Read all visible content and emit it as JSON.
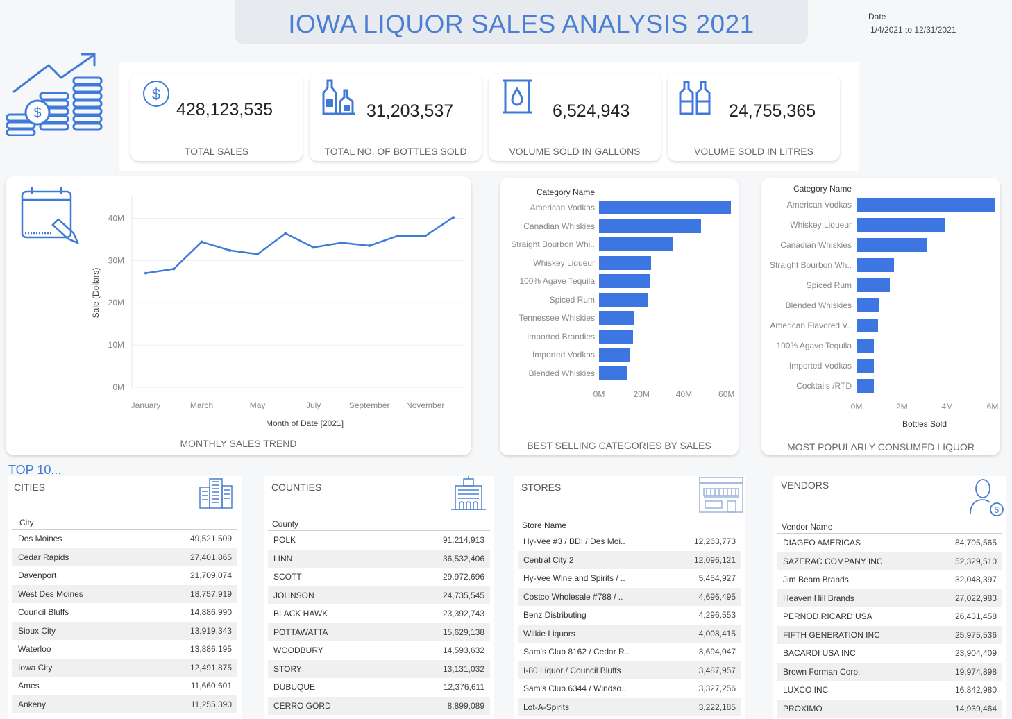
{
  "header": {
    "title": "IOWA LIQUOR SALES ANALYSIS 2021",
    "date_label": "Date",
    "date_range": "1/4/2021 to 12/31/2021"
  },
  "kpis": [
    {
      "value": "428,123,535",
      "label": "TOTAL SALES",
      "icon": "dollar-icon"
    },
    {
      "value": "31,203,537",
      "label": "TOTAL NO. OF BOTTLES SOLD",
      "icon": "bottles-icon"
    },
    {
      "value": "6,524,943",
      "label": "VOLUME SOLD IN GALLONS",
      "icon": "barrel-icon"
    },
    {
      "value": "24,755,365",
      "label": "VOLUME SOLD IN LITRES",
      "icon": "bottles-litre-icon"
    }
  ],
  "sections": {
    "top10": "TOP 10..."
  },
  "chart_data": [
    {
      "type": "line",
      "title": "MONTHLY SALES TREND",
      "xlabel": "Month of Date [2021]",
      "ylabel": "Sale (Dollars)",
      "ylim": [
        0,
        45
      ],
      "yticks": [
        "0M",
        "10M",
        "20M",
        "30M",
        "40M"
      ],
      "xticks": [
        "January",
        "March",
        "May",
        "July",
        "September",
        "November"
      ],
      "x": [
        "January",
        "February",
        "March",
        "April",
        "May",
        "June",
        "July",
        "August",
        "September",
        "October",
        "November",
        "December"
      ],
      "series": [
        {
          "values": [
            27.0,
            28.0,
            34.4,
            32.4,
            31.5,
            36.4,
            33.1,
            34.2,
            33.5,
            35.8,
            35.8,
            40.2
          ]
        }
      ],
      "grid": true
    },
    {
      "type": "bar",
      "orientation": "horizontal",
      "title": "BEST SELLING CATEGORIES BY SALES",
      "category_header": "Category Name",
      "categories": [
        "American Vodkas",
        "Canadian Whiskies",
        "Straight Bourbon Whi..",
        "Whiskey Liqueur",
        "100% Agave Tequila",
        "Spiced Rum",
        "Tennessee Whiskies",
        "Imported Brandies",
        "Imported Vodkas",
        "Blended Whiskies"
      ],
      "values": [
        62,
        48,
        34.5,
        24.5,
        24,
        23.3,
        16.5,
        16,
        14.3,
        13
      ],
      "xlim": [
        0,
        65
      ],
      "xticks": [
        "0M",
        "20M",
        "40M",
        "60M"
      ]
    },
    {
      "type": "bar",
      "orientation": "horizontal",
      "title": "MOST POPULARLY CONSUMED LIQUOR",
      "category_header": "Category Name",
      "xlabel": "Bottles Sold",
      "categories": [
        "American Vodkas",
        "Whiskey Liqueur",
        "Canadian Whiskies",
        "Straight Bourbon Wh..",
        "Spiced Rum",
        "Blended Whiskies",
        "American Flavored V..",
        "100% Agave Tequila",
        "Imported Vodkas",
        "Cocktails /RTD"
      ],
      "values": [
        6.1,
        3.9,
        3.1,
        1.66,
        1.47,
        0.97,
        0.95,
        0.78,
        0.78,
        0.75
      ],
      "xlim": [
        0,
        6
      ],
      "xticks": [
        "0M",
        "2M",
        "4M",
        "6M"
      ]
    }
  ],
  "tables": [
    {
      "title": "CITIES",
      "header": "City",
      "icon": "buildings-icon",
      "rows": [
        [
          "Des Moines",
          "49,521,509"
        ],
        [
          "Cedar Rapids",
          "27,401,865"
        ],
        [
          "Davenport",
          "21,709,074"
        ],
        [
          "West Des Moines",
          "18,757,919"
        ],
        [
          "Council Bluffs",
          "14,886,990"
        ],
        [
          "Sioux City",
          "13,919,343"
        ],
        [
          "Waterloo",
          "13,886,195"
        ],
        [
          "Iowa City",
          "12,491,875"
        ],
        [
          "Ames",
          "11,660,601"
        ],
        [
          "Ankeny",
          "11,255,390"
        ]
      ]
    },
    {
      "title": "COUNTIES",
      "header": "County",
      "icon": "county-building-icon",
      "rows": [
        [
          "POLK",
          "91,214,913"
        ],
        [
          "LINN",
          "36,532,406"
        ],
        [
          "SCOTT",
          "29,972,696"
        ],
        [
          "JOHNSON",
          "24,735,545"
        ],
        [
          "BLACK HAWK",
          "23,392,743"
        ],
        [
          "POTTAWATTA",
          "15,629,138"
        ],
        [
          "WOODBURY",
          "14,593,632"
        ],
        [
          "STORY",
          "13,131,032"
        ],
        [
          "DUBUQUE",
          "12,376,611"
        ],
        [
          "CERRO GORD",
          "8,899,089"
        ]
      ]
    },
    {
      "title": "STORES",
      "header": "Store Name",
      "icon": "store-icon",
      "rows": [
        [
          "Hy-Vee #3 / BDI / Des Moi..",
          "12,263,773"
        ],
        [
          "Central City 2",
          "12,096,121"
        ],
        [
          "Hy-Vee Wine and Spirits / ..",
          "5,454,927"
        ],
        [
          "Costco Wholesale #788 / ..",
          "4,696,495"
        ],
        [
          "Benz Distributing",
          "4,296,553"
        ],
        [
          "Wilkie Liquors",
          "4,008,415"
        ],
        [
          "Sam's Club 8162 / Cedar R..",
          "3,694,047"
        ],
        [
          "I-80 Liquor / Council Bluffs",
          "3,487,957"
        ],
        [
          "Sam's Club 6344 / Windso..",
          "3,327,256"
        ],
        [
          "Lot-A-Spirits",
          "3,222,185"
        ]
      ]
    },
    {
      "title": "VENDORS",
      "header": "Vendor Name",
      "icon": "vendor-person-icon",
      "rows": [
        [
          "DIAGEO AMERICAS",
          "84,705,565"
        ],
        [
          "SAZERAC COMPANY INC",
          "52,329,510"
        ],
        [
          "Jim Beam Brands",
          "32,048,397"
        ],
        [
          "Heaven Hill Brands",
          "27,022,983"
        ],
        [
          "PERNOD RICARD USA",
          "26,431,458"
        ],
        [
          "FIFTH GENERATION INC",
          "25,975,536"
        ],
        [
          "BACARDI USA INC",
          "23,904,409"
        ],
        [
          "Brown Forman Corp.",
          "19,974,898"
        ],
        [
          "LUXCO INC",
          "16,842,980"
        ],
        [
          "PROXIMO",
          "14,939,464"
        ]
      ]
    }
  ],
  "colors": {
    "accent": "#3d76e0",
    "title": "#4a7fd3",
    "line": "#3f7bd8"
  }
}
